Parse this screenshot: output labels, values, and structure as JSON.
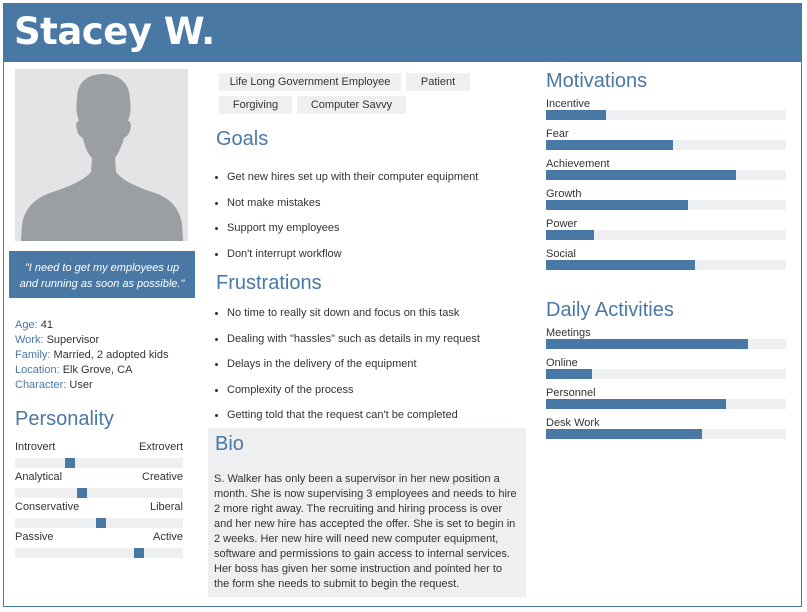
{
  "persona": {
    "name": "Stacey W.",
    "quote": "\"I need to get my employees up and running as soon as possible.\""
  },
  "facts": [
    {
      "label": "Age:",
      "value": "41"
    },
    {
      "label": "Work:",
      "value": "Supervisor"
    },
    {
      "label": "Family:",
      "value": "Married, 2 adopted kids"
    },
    {
      "label": "Location:",
      "value": "Elk Grove, CA"
    },
    {
      "label": "Character:",
      "value": "User"
    }
  ],
  "personality": {
    "title": "Personality",
    "scales": [
      {
        "left": "Introvert",
        "right": "Extrovert",
        "level": 0.33
      },
      {
        "left": "Analytical",
        "right": "Creative",
        "level": 0.4
      },
      {
        "left": "Conservative",
        "right": "Liberal",
        "level": 0.51
      },
      {
        "left": "Passive",
        "right": "Active",
        "level": 0.74
      }
    ]
  },
  "tags": [
    "Life Long Government Employee",
    "Patient",
    "Forgiving",
    "Computer Savvy"
  ],
  "goals": {
    "title": "Goals",
    "items": [
      "Get new hires set up with their computer equipment",
      "Not make mistakes",
      "Support my employees",
      "Don't interrupt workflow"
    ]
  },
  "frustrations": {
    "title": "Frustrations",
    "items": [
      "No time to really sit down and focus on this task",
      "Dealing with \"hassles\" such as details in my request",
      "Delays in the delivery of the equipment",
      "Complexity of the process",
      "Getting told that the request can't be completed"
    ]
  },
  "bio": {
    "title": "Bio",
    "text": "S. Walker has only been a supervisor in her new position a month. She is now supervising 3 employees and needs to hire 2 more right away.  The recruiting and hiring process is over and her new hire has accepted the offer.  She is set to begin in 2 weeks. Her new hire will need new computer equipment, software and permissions to gain access to internal services. Her boss has given her some instruction and pointed her to the form she needs to submit to begin the request."
  },
  "motivations": {
    "title": "Motivations",
    "items": [
      {
        "label": "Incentive",
        "level": 0.25
      },
      {
        "label": "Fear",
        "level": 0.53
      },
      {
        "label": "Achievement",
        "level": 0.79
      },
      {
        "label": "Growth",
        "level": 0.59
      },
      {
        "label": "Power",
        "level": 0.2
      },
      {
        "label": "Social",
        "level": 0.62
      }
    ]
  },
  "daily_activities": {
    "title": "Daily Activities",
    "items": [
      {
        "label": "Meetings",
        "level": 0.84
      },
      {
        "label": "Online",
        "level": 0.19
      },
      {
        "label": "Personnel",
        "level": 0.75
      },
      {
        "label": "Desk Work",
        "level": 0.65
      }
    ]
  },
  "colors": {
    "accent": "#4a78a5",
    "track": "#eeeff1",
    "photo_bg": "#e3e4e6",
    "silhouette": "#9b9ea2"
  }
}
